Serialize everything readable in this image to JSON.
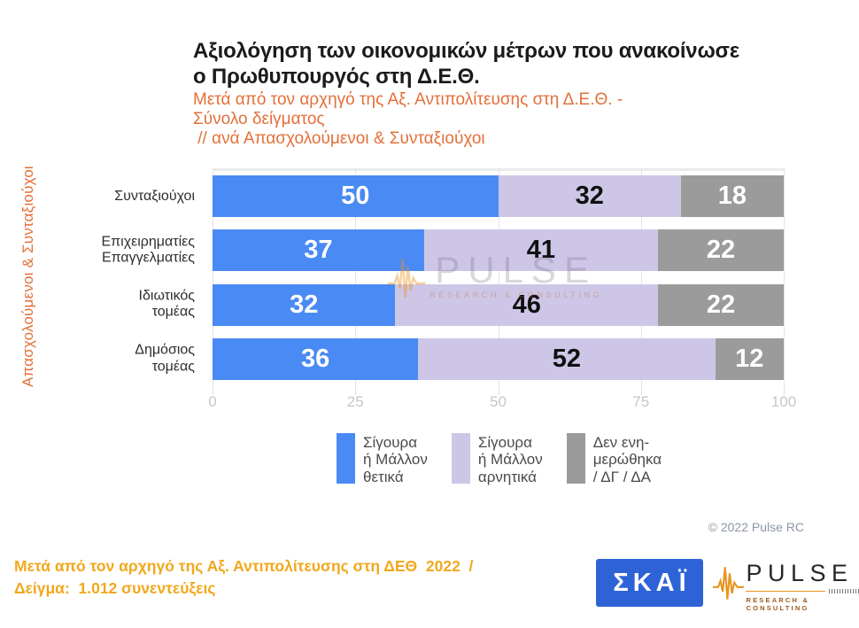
{
  "header": {
    "title": "Αξιολόγηση των οικονομικών μέτρων που ανακοίνωσε\nο Πρωθυπουργός στη Δ.Ε.Θ.",
    "subtitle": "Μετά από τον αρχηγό της Αξ. Αντιπολίτευσης στη Δ.Ε.Θ. -\nΣύνολο δείγματος\n // ανά Απασχολούμενοι & Συνταξιούχοι"
  },
  "side_label": "Απασχολούμενοι & Συνταξιούχοι",
  "chart_data": {
    "type": "bar",
    "orientation": "horizontal",
    "stacked": true,
    "categories": [
      "Συνταξιούχοι",
      "Επιχειρηματίες\nΕπαγγελματίες",
      "Ιδιωτικός\nτομέας",
      "Δημόσιος\nτομέας"
    ],
    "series": [
      {
        "name": "Σίγουρα ή Μάλλον θετικά",
        "color": "#4A8AF4",
        "label_color": "#FFFFFF",
        "values": [
          50,
          37,
          32,
          36
        ]
      },
      {
        "name": "Σίγουρα ή Μάλλον αρνητικά",
        "color": "#CEC6E6",
        "label_color": "#101010",
        "values": [
          32,
          41,
          46,
          52
        ]
      },
      {
        "name": "Δεν ενημερώθηκα / ΔΓ / ΔΑ",
        "color": "#9B9B9B",
        "label_color": "#FFFFFF",
        "values": [
          18,
          22,
          22,
          12
        ]
      }
    ],
    "xlim": [
      0,
      100
    ],
    "x_ticks": [
      0,
      25,
      50,
      75,
      100
    ],
    "grid": true,
    "legend_position": "bottom"
  },
  "legend": {
    "items": [
      {
        "color": "#4A8AF4",
        "label": "Σίγουρα\nή Μάλλον\nθετικά"
      },
      {
        "color": "#CEC6E6",
        "label": "Σίγουρα\nή Μάλλον\nαρνητικά"
      },
      {
        "color": "#9B9B9B",
        "label": "Δεν ενη-\nμερώθηκα\n/ ΔΓ / ΔΑ"
      }
    ]
  },
  "watermark": {
    "text": "PULSE",
    "subtext": "RESEARCH & CONSULTING"
  },
  "copyright": "© 2022 Pulse RC",
  "footer": {
    "note": "Μετά από τον αρχηγό της Αξ. Αντιπολίτευσης στη ΔΕΘ  2022  /\nΔείγμα:  1.012 συνεντεύξεις",
    "skai_logo_text": "ΣΚΑΪ",
    "pulse_logo_text": "PULSE",
    "pulse_logo_subtext": "RESEARCH & CONSULTING"
  },
  "colors": {
    "accent_orange": "#E2703A",
    "footer_amber": "#F0A81C",
    "skai_blue": "#2E63D7",
    "pulse_orange": "#E8941E",
    "axis_gray": "#C6C6CF"
  }
}
